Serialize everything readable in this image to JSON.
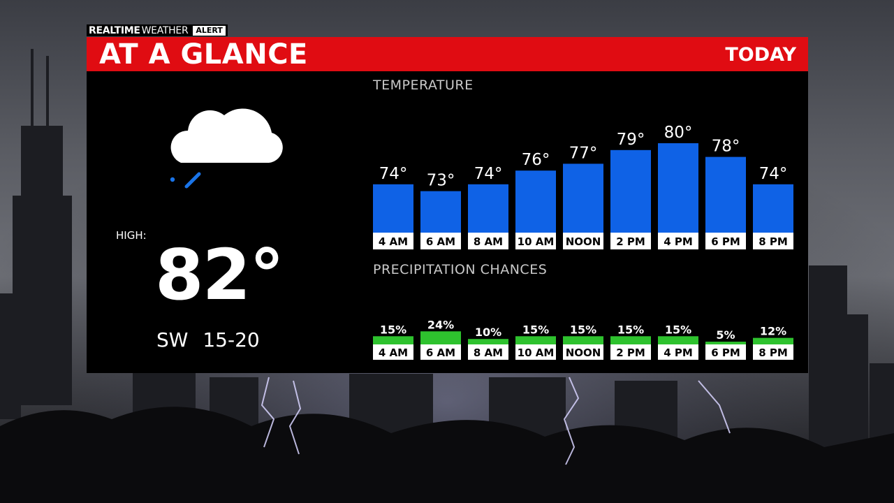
{
  "brand": {
    "realtime": "REALTIME",
    "weather": "WEATHER",
    "alert": "ALERT"
  },
  "header": {
    "title": "AT A GLANCE",
    "period": "TODAY"
  },
  "summary": {
    "condition_icon": "cloud-rain-icon",
    "high_label": "HIGH:",
    "high_value": "82°",
    "wind": "SW 15-20"
  },
  "colors": {
    "header_red": "#e00c12",
    "temp_bar": "#0f62e6",
    "precip_bar": "#2ec22e"
  },
  "chart_data": [
    {
      "type": "bar",
      "title": "TEMPERATURE",
      "categories": [
        "4 AM",
        "6 AM",
        "8 AM",
        "10 AM",
        "NOON",
        "2 PM",
        "4 PM",
        "6 PM",
        "8 PM"
      ],
      "values": [
        74,
        73,
        74,
        76,
        77,
        79,
        80,
        78,
        74
      ],
      "value_labels": [
        "74°",
        "73°",
        "74°",
        "76°",
        "77°",
        "79°",
        "80°",
        "78°",
        "74°"
      ],
      "ylim": [
        70,
        80
      ],
      "grid": false
    },
    {
      "type": "bar",
      "title": "PRECIPITATION CHANCES",
      "categories": [
        "4 AM",
        "6 AM",
        "8 AM",
        "10 AM",
        "NOON",
        "2 PM",
        "4 PM",
        "6 PM",
        "8 PM"
      ],
      "values": [
        15,
        24,
        10,
        15,
        15,
        15,
        15,
        5,
        12
      ],
      "value_labels": [
        "15%",
        "24%",
        "10%",
        "15%",
        "15%",
        "15%",
        "15%",
        "5%",
        "12%"
      ],
      "ylim": [
        0,
        100
      ],
      "grid": false
    }
  ]
}
